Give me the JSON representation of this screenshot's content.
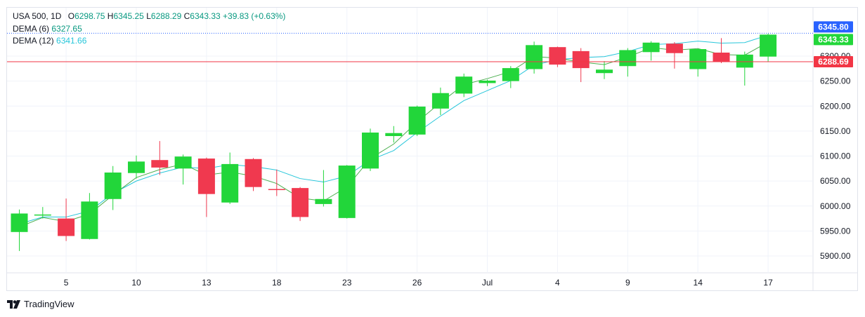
{
  "legend": {
    "symbol": "USA 500, 1D",
    "open_label": "O",
    "open": "6298.75",
    "high_label": "H",
    "high": "6345.25",
    "low_label": "L",
    "low": "6288.29",
    "close_label": "C",
    "close": "6343.33",
    "change": "+39.83 (+0.63%)",
    "dema6_label": "DEMA (6)",
    "dema6_value": "6327.65",
    "dema12_label": "DEMA (12)",
    "dema12_value": "6341.66"
  },
  "branding": {
    "logo_text": "TradingView"
  },
  "colors": {
    "up": "#22d63a",
    "down": "#f0394f",
    "dema6": "#4caf50",
    "dema12": "#26c6da",
    "last_line": "#2962ff",
    "low_line": "#f23645"
  },
  "chart_data": {
    "type": "candlestick",
    "ylim": [
      5860,
      6370
    ],
    "y_ticks": [
      5900,
      5950,
      6000,
      6050,
      6100,
      6150,
      6200,
      6250,
      6300
    ],
    "y_tick_labels": [
      "5900.00",
      "5950.00",
      "6000.00",
      "6050.00",
      "6100.00",
      "6150.00",
      "6200.00",
      "6250.00",
      "6300.00"
    ],
    "x_ticks": [
      {
        "index": 2,
        "label": "5"
      },
      {
        "index": 5,
        "label": "10"
      },
      {
        "index": 8,
        "label": "13"
      },
      {
        "index": 11,
        "label": "18"
      },
      {
        "index": 14,
        "label": "23"
      },
      {
        "index": 17,
        "label": "26"
      },
      {
        "index": 20,
        "label": "Jul"
      },
      {
        "index": 23,
        "label": "4"
      },
      {
        "index": 26,
        "label": "9"
      },
      {
        "index": 29,
        "label": "14"
      },
      {
        "index": 32,
        "label": "17"
      }
    ],
    "candles": [
      {
        "o": 5948,
        "h": 5993,
        "l": 5910,
        "c": 5985
      },
      {
        "o": 5981,
        "h": 5998,
        "l": 5975,
        "c": 5983
      },
      {
        "o": 5975,
        "h": 6015,
        "l": 5930,
        "c": 5940
      },
      {
        "o": 5934,
        "h": 6026,
        "l": 5933,
        "c": 6009
      },
      {
        "o": 6014,
        "h": 6080,
        "l": 5992,
        "c": 6067
      },
      {
        "o": 6066,
        "h": 6101,
        "l": 6055,
        "c": 6089
      },
      {
        "o": 6092,
        "h": 6130,
        "l": 6062,
        "c": 6077
      },
      {
        "o": 6075,
        "h": 6103,
        "l": 6043,
        "c": 6099
      },
      {
        "o": 6095,
        "h": 6097,
        "l": 5978,
        "c": 6024
      },
      {
        "o": 6007,
        "h": 6107,
        "l": 6004,
        "c": 6084
      },
      {
        "o": 6094,
        "h": 6096,
        "l": 6030,
        "c": 6038
      },
      {
        "o": 6034,
        "h": 6073,
        "l": 6020,
        "c": 6032
      },
      {
        "o": 6036,
        "h": 6038,
        "l": 5970,
        "c": 5978
      },
      {
        "o": 6004,
        "h": 6072,
        "l": 5999,
        "c": 6014
      },
      {
        "o": 5976,
        "h": 6082,
        "l": 5975,
        "c": 6081
      },
      {
        "o": 6075,
        "h": 6155,
        "l": 6070,
        "c": 6147
      },
      {
        "o": 6140,
        "h": 6160,
        "l": 6127,
        "c": 6146
      },
      {
        "o": 6143,
        "h": 6201,
        "l": 6140,
        "c": 6199
      },
      {
        "o": 6195,
        "h": 6237,
        "l": 6182,
        "c": 6226
      },
      {
        "o": 6225,
        "h": 6265,
        "l": 6218,
        "c": 6259
      },
      {
        "o": 6246,
        "h": 6253,
        "l": 6240,
        "c": 6251
      },
      {
        "o": 6250,
        "h": 6280,
        "l": 6236,
        "c": 6276
      },
      {
        "o": 6274,
        "h": 6329,
        "l": 6265,
        "c": 6322
      },
      {
        "o": 6318,
        "h": 6319,
        "l": 6278,
        "c": 6283
      },
      {
        "o": 6310,
        "h": 6316,
        "l": 6248,
        "c": 6276
      },
      {
        "o": 6266,
        "h": 6290,
        "l": 6254,
        "c": 6273
      },
      {
        "o": 6280,
        "h": 6316,
        "l": 6259,
        "c": 6312
      },
      {
        "o": 6308,
        "h": 6330,
        "l": 6291,
        "c": 6327
      },
      {
        "o": 6325,
        "h": 6328,
        "l": 6275,
        "c": 6306
      },
      {
        "o": 6274,
        "h": 6315,
        "l": 6259,
        "c": 6314
      },
      {
        "o": 6307,
        "h": 6336,
        "l": 6286,
        "c": 6289
      },
      {
        "o": 6277,
        "h": 6309,
        "l": 6241,
        "c": 6303
      },
      {
        "o": 6299,
        "h": 6345,
        "l": 6288,
        "c": 6343
      }
    ],
    "dema6": [
      5958,
      5977,
      5969,
      5984,
      6022,
      6057,
      6073,
      6084,
      6062,
      6068,
      6060,
      6045,
      6016,
      6010,
      6038,
      6095,
      6124,
      6168,
      6207,
      6243,
      6255,
      6269,
      6299,
      6296,
      6288,
      6283,
      6298,
      6317,
      6312,
      6315,
      6303,
      6302,
      6328
    ],
    "dema12": [
      5964,
      5978,
      5978,
      5990,
      6025,
      6050,
      6066,
      6078,
      6075,
      6083,
      6079,
      6072,
      6055,
      6048,
      6060,
      6092,
      6111,
      6147,
      6180,
      6211,
      6231,
      6251,
      6282,
      6293,
      6297,
      6299,
      6309,
      6323,
      6325,
      6330,
      6326,
      6327,
      6342
    ],
    "last_price": 6345.8,
    "last_price_label": "6345.80",
    "close_label": "6343.33",
    "low_line_price": 6288.69,
    "low_line_label": "6288.69"
  }
}
